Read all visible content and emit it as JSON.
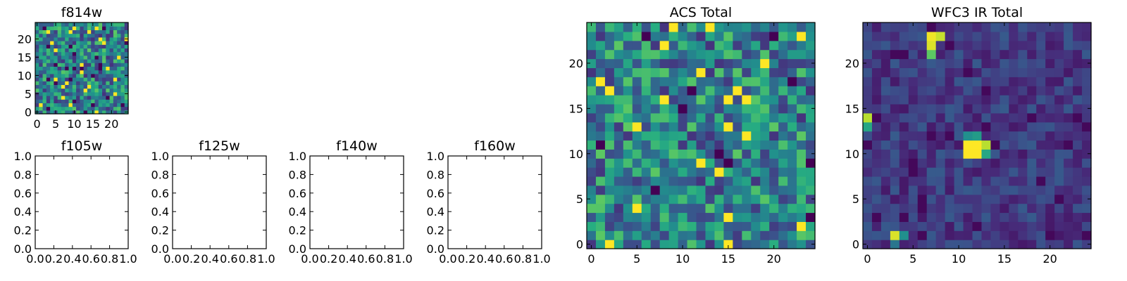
{
  "chart_data": [
    {
      "type": "heatmap",
      "title": "f814w",
      "xlim": [
        -0.5,
        24.5
      ],
      "ylim": [
        -0.5,
        24.5
      ],
      "xticks": [
        0,
        5,
        10,
        15,
        20
      ],
      "yticks": [
        0,
        5,
        10,
        15,
        20
      ],
      "grid_size": [
        25,
        25
      ],
      "colormap": "viridis",
      "seed": 814,
      "pixel_values": "random noise field (values not printed)"
    },
    {
      "type": "empty",
      "title": "f105w",
      "xlim": [
        0.0,
        1.0
      ],
      "ylim": [
        0.0,
        1.0
      ],
      "xticks": [
        "0.0",
        "0.2",
        "0.4",
        "0.6",
        "0.8",
        "1.0"
      ],
      "yticks": [
        "0.0",
        "0.2",
        "0.4",
        "0.6",
        "0.8",
        "1.0"
      ]
    },
    {
      "type": "empty",
      "title": "f125w",
      "xlim": [
        0.0,
        1.0
      ],
      "ylim": [
        0.0,
        1.0
      ],
      "xticks": [
        "0.0",
        "0.2",
        "0.4",
        "0.6",
        "0.8",
        "1.0"
      ],
      "yticks": [
        "0.0",
        "0.2",
        "0.4",
        "0.6",
        "0.8",
        "1.0"
      ]
    },
    {
      "type": "empty",
      "title": "f140w",
      "xlim": [
        0.0,
        1.0
      ],
      "ylim": [
        0.0,
        1.0
      ],
      "xticks": [
        "0.0",
        "0.2",
        "0.4",
        "0.6",
        "0.8",
        "1.0"
      ],
      "yticks": [
        "0.0",
        "0.2",
        "0.4",
        "0.6",
        "0.8",
        "1.0"
      ]
    },
    {
      "type": "empty",
      "title": "f160w",
      "xlim": [
        0.0,
        1.0
      ],
      "ylim": [
        0.0,
        1.0
      ],
      "xticks": [
        "0.0",
        "0.2",
        "0.4",
        "0.6",
        "0.8",
        "1.0"
      ],
      "yticks": [
        "0.0",
        "0.2",
        "0.4",
        "0.6",
        "0.8",
        "1.0"
      ]
    },
    {
      "type": "heatmap",
      "title": "ACS Total",
      "xlim": [
        -0.5,
        24.5
      ],
      "ylim": [
        -0.5,
        24.5
      ],
      "xticks": [
        0,
        5,
        10,
        15,
        20
      ],
      "yticks": [
        0,
        5,
        10,
        15,
        20
      ],
      "grid_size": [
        25,
        25
      ],
      "colormap": "viridis",
      "seed": 2024,
      "pixel_values": "random noise field (values not printed)"
    },
    {
      "type": "heatmap",
      "title": "WFC3 IR Total",
      "xlim": [
        -0.5,
        24.5
      ],
      "ylim": [
        -0.5,
        24.5
      ],
      "xticks": [
        0,
        5,
        10,
        15,
        20
      ],
      "yticks": [
        0,
        5,
        10,
        15,
        20
      ],
      "grid_size": [
        25,
        25
      ],
      "colormap": "viridis",
      "seed": 3113,
      "background_level": 0.18,
      "bright_sources": [
        {
          "x": 7,
          "y": 22,
          "value": 0.95
        },
        {
          "x": 7,
          "y": 23,
          "value": 0.98
        },
        {
          "x": 8,
          "y": 23,
          "value": 0.92
        },
        {
          "x": 7,
          "y": 21,
          "value": 0.75
        },
        {
          "x": 11,
          "y": 11,
          "value": 1.0
        },
        {
          "x": 12,
          "y": 11,
          "value": 1.0
        },
        {
          "x": 11,
          "y": 10,
          "value": 1.0
        },
        {
          "x": 12,
          "y": 10,
          "value": 1.0
        },
        {
          "x": 13,
          "y": 11,
          "value": 0.9
        },
        {
          "x": 12,
          "y": 12,
          "value": 0.55
        },
        {
          "x": 11,
          "y": 12,
          "value": 0.5
        },
        {
          "x": 13,
          "y": 10,
          "value": 0.6
        },
        {
          "x": 0,
          "y": 14,
          "value": 0.9
        },
        {
          "x": 0,
          "y": 13,
          "value": 0.6
        },
        {
          "x": 3,
          "y": 1,
          "value": 0.95
        },
        {
          "x": 4,
          "y": 1,
          "value": 0.5
        },
        {
          "x": 3,
          "y": 0,
          "value": 0.4
        }
      ],
      "pixel_values": "mostly dark background with a few bright sources"
    }
  ]
}
